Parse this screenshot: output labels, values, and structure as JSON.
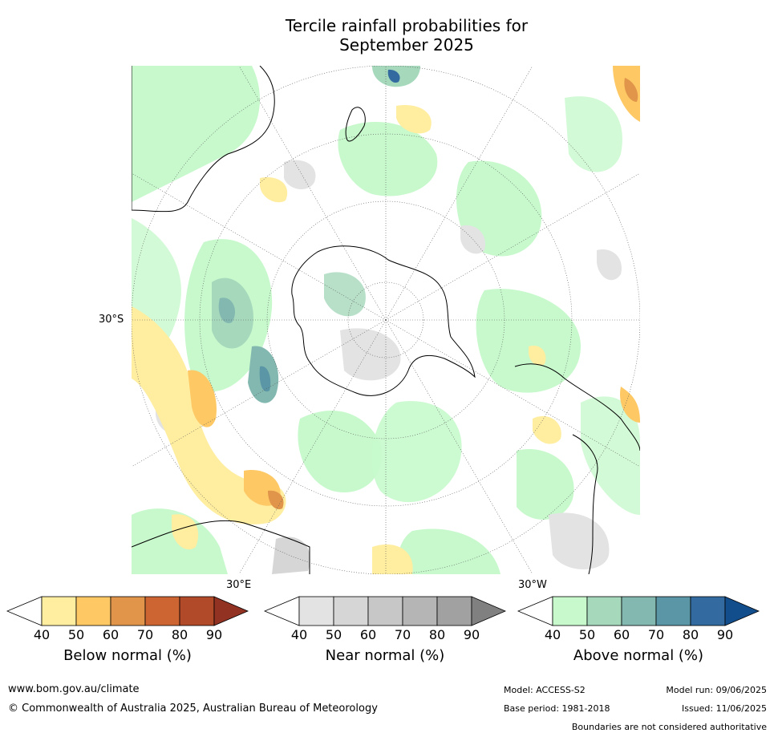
{
  "title": {
    "line1": "Tercile rainfall probabilities for",
    "line2": "September 2025"
  },
  "map_labels": {
    "lat": "30°S",
    "lon_east": "30°E",
    "lon_west": "30°W"
  },
  "colorbars": [
    {
      "name": "below",
      "title": "Below normal (%)",
      "ticks": [
        "40",
        "50",
        "60",
        "70",
        "80",
        "90"
      ],
      "colors": [
        "#ffffff",
        "#ffeda0",
        "#fec965",
        "#e0954a",
        "#cc6532",
        "#b04a28",
        "#923223"
      ]
    },
    {
      "name": "near",
      "title": "Near normal (%)",
      "ticks": [
        "40",
        "50",
        "60",
        "70",
        "80",
        "90"
      ],
      "colors": [
        "#ffffff",
        "#e3e3e3",
        "#d6d6d6",
        "#c7c7c7",
        "#b5b5b5",
        "#a1a1a1",
        "#808080"
      ]
    },
    {
      "name": "above",
      "title": "Above normal (%)",
      "ticks": [
        "40",
        "50",
        "60",
        "70",
        "80",
        "90"
      ],
      "colors": [
        "#ffffff",
        "#c7f9cc",
        "#a6d8bc",
        "#83b8b0",
        "#5a96a5",
        "#336ba0",
        "#124d8c"
      ]
    }
  ],
  "footer": {
    "url": "www.bom.gov.au/climate",
    "copyright": "© Commonwealth of Australia 2025, Australian Bureau of Meteorology",
    "model": "Model: ACCESS-S2",
    "base_period": "Base period: 1981-2018",
    "model_run": "Model run: 09/06/2025",
    "issued": "Issued: 11/06/2025",
    "disclaimer": "Boundaries are not considered authoritative"
  }
}
